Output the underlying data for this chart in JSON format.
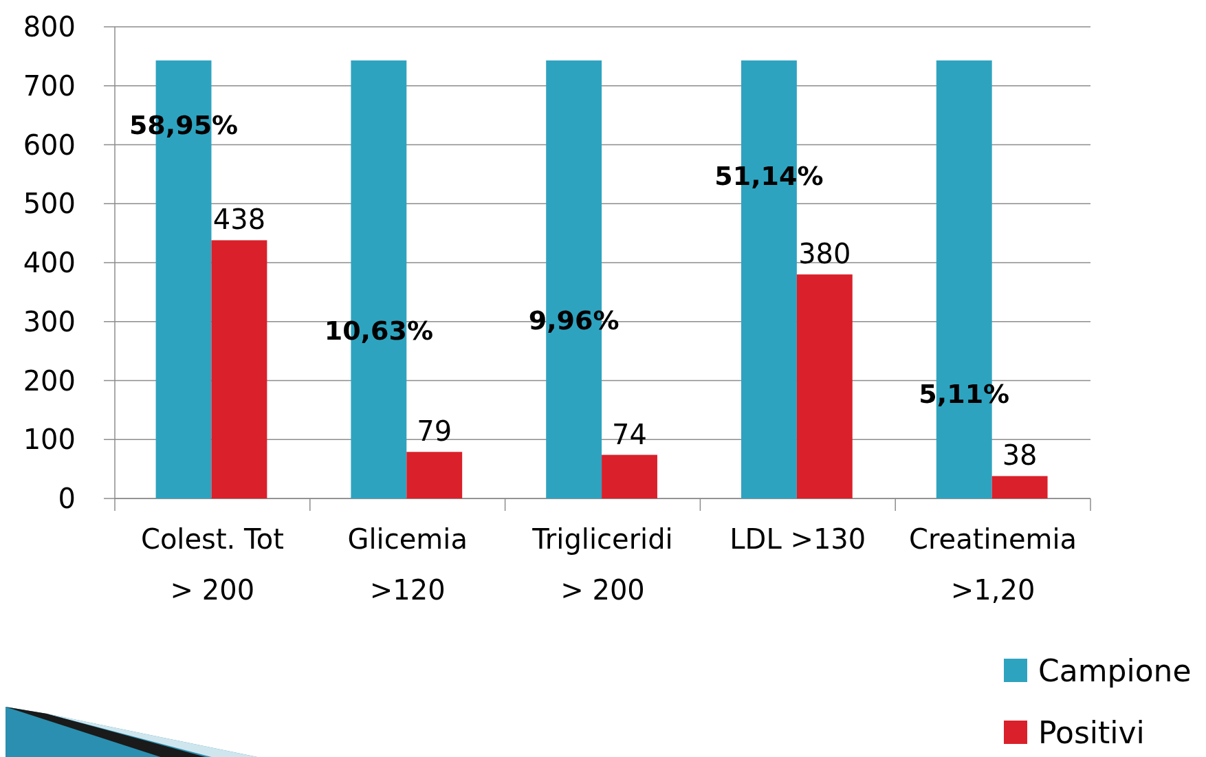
{
  "chart_data": {
    "type": "bar",
    "categories": [
      "Colest. Tot > 200",
      "Glicemia >120",
      "Trigliceridi > 200",
      "LDL >130",
      "Creatinemia >1,20"
    ],
    "series": [
      {
        "name": "Campione",
        "color": "#2ea3c0",
        "values": [
          743,
          743,
          743,
          743,
          743
        ]
      },
      {
        "name": "Positivi",
        "color": "#da202a",
        "values": [
          438,
          79,
          74,
          380,
          38
        ],
        "value_labels": [
          "438",
          "79",
          "74",
          "380",
          "38"
        ]
      }
    ],
    "ylim": [
      0,
      800
    ],
    "yticks": [
      0,
      100,
      200,
      300,
      400,
      500,
      600,
      700,
      800
    ],
    "grid": "y",
    "legend": "bottom right",
    "annotations": [
      {
        "text": "58,95%",
        "x": "Colest. Tot > 200",
        "y": 634
      },
      {
        "text": "10,63%",
        "x": "Glicemia >120",
        "y": 285
      },
      {
        "text": "9,96%",
        "x": "Trigliceridi > 200",
        "y": 302
      },
      {
        "text": "51,14%",
        "x": "LDL >130",
        "y": 547
      },
      {
        "text": "5,11%",
        "x": "Creatinemia >1,20",
        "y": 178
      }
    ]
  }
}
